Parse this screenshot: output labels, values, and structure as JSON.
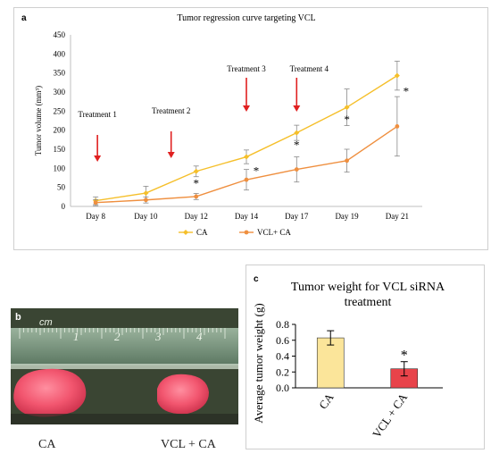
{
  "panel_a": {
    "label": "a",
    "chart_data": {
      "type": "line",
      "title": "Tumor regression curve targeting VCL",
      "ylabel": "Tumor volume (mm³)",
      "xlabel": "",
      "categories": [
        "Day 8",
        "Day 10",
        "Day 12",
        "Day 14",
        "Day 17",
        "Day 19",
        "Day 21"
      ],
      "ylim": [
        0,
        450
      ],
      "yticks": [
        "0",
        "50",
        "100",
        "150",
        "200",
        "250",
        "300",
        "350",
        "400",
        "450"
      ],
      "series": [
        {
          "name": "CA",
          "color": "#f5bf2a",
          "values": [
            15,
            35,
            92,
            130,
            193,
            260,
            343
          ],
          "errors": [
            10,
            18,
            14,
            18,
            20,
            48,
            38
          ]
        },
        {
          "name": "VCL+ CA",
          "color": "#ef8f3f",
          "values": [
            10,
            17,
            26,
            70,
            97,
            120,
            210
          ],
          "errors": [
            8,
            8,
            8,
            27,
            33,
            30,
            78
          ]
        }
      ],
      "significance": [
        "",
        "",
        "*",
        "*",
        "*",
        "*",
        "*"
      ],
      "treatments": [
        {
          "label": "Treatment 1",
          "day": "Day 8"
        },
        {
          "label": "Treatment 2",
          "day": "Day 12"
        },
        {
          "label": "Treatment 3",
          "day": "Day 14"
        },
        {
          "label": "Treatment 4",
          "day": "Day 17"
        }
      ],
      "arrow_color": "#e02020",
      "legend_position": "bottom-center",
      "grid": false
    }
  },
  "panel_b": {
    "label": "b",
    "ruler_unit": "cm",
    "ruler_numbers": [
      "1",
      "2",
      "3",
      "4"
    ],
    "captions": [
      "CA",
      "VCL + CA"
    ]
  },
  "panel_c": {
    "label": "c",
    "chart_data": {
      "type": "bar",
      "title": "Tumor weight for VCL siRNA treatment",
      "title_lines": [
        "Tumor weight for VCL siRNA",
        "treatment"
      ],
      "ylabel": "Average tumor weight  (g)",
      "categories": [
        "CA",
        "VCL + CA"
      ],
      "values": [
        0.63,
        0.24
      ],
      "errors": [
        0.09,
        0.09
      ],
      "colors": [
        "#fbe59a",
        "#e8434a"
      ],
      "ylim": [
        0,
        0.8
      ],
      "yticks": [
        "0.0",
        "0.2",
        "0.4",
        "0.6",
        "0.8"
      ],
      "significance": [
        "",
        "*"
      ],
      "grid": false
    }
  }
}
